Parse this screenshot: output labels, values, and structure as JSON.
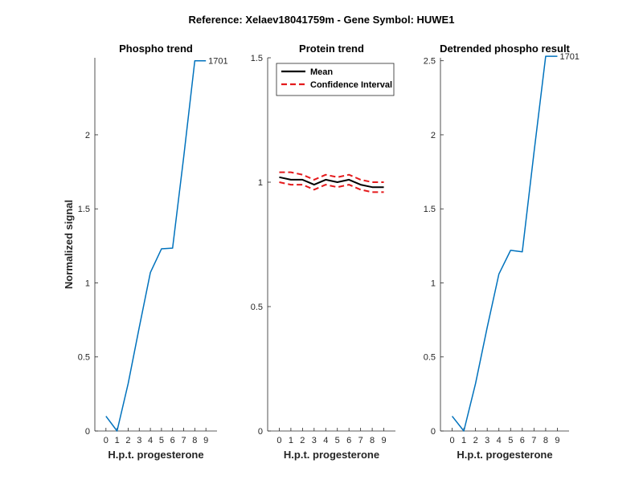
{
  "figure": {
    "title": "Reference:  Xelaev18041759m - Gene Symbol:  HUWE1"
  },
  "chart_data": [
    {
      "type": "line",
      "title": "Phospho trend",
      "xlabel": "H.p.t. progesterone",
      "ylabel": "Normalized signal",
      "xlim": [
        -1,
        10
      ],
      "ylim": [
        0,
        2.52
      ],
      "xticks": [
        0,
        1,
        2,
        3,
        4,
        5,
        6,
        7,
        8,
        9
      ],
      "yticks": [
        0,
        0.5,
        1,
        1.5,
        2
      ],
      "ytick_labels": [
        "0",
        "0.5",
        "1",
        "1.5",
        "2"
      ],
      "series": [
        {
          "color": "#0072BD",
          "x": [
            0,
            1,
            2,
            3,
            4,
            5,
            6,
            7,
            8,
            9
          ],
          "y": [
            0.1,
            0.0,
            0.32,
            0.7,
            1.07,
            1.23,
            1.235,
            1.85,
            2.5,
            2.5
          ]
        }
      ],
      "annotations": [
        {
          "text": "1701",
          "x": 9,
          "y": 2.5
        }
      ]
    },
    {
      "type": "line",
      "title": "Protein trend",
      "xlabel": "H.p.t. progesterone",
      "ylabel": "",
      "xlim": [
        -1,
        10
      ],
      "ylim": [
        0,
        1.5
      ],
      "xticks": [
        0,
        1,
        2,
        3,
        4,
        5,
        6,
        7,
        8,
        9
      ],
      "yticks": [
        0,
        0.5,
        1,
        1.5
      ],
      "ytick_labels": [
        "0",
        "0.5",
        "1",
        "1.5"
      ],
      "legend": "top-left",
      "series": [
        {
          "name": "Mean",
          "color": "#000000",
          "style": "solid",
          "x": [
            0,
            1,
            2,
            3,
            4,
            5,
            6,
            7,
            8,
            9
          ],
          "y": [
            1.02,
            1.01,
            1.01,
            0.99,
            1.01,
            1.0,
            1.01,
            0.99,
            0.98,
            0.98
          ]
        },
        {
          "name": "Confidence Interval",
          "color": "#E41A1C",
          "style": "dashed",
          "x": [
            0,
            1,
            2,
            3,
            4,
            5,
            6,
            7,
            8,
            9
          ],
          "y": [
            1.04,
            1.04,
            1.03,
            1.01,
            1.03,
            1.02,
            1.03,
            1.01,
            1.0,
            1.0
          ]
        },
        {
          "name": "",
          "color": "#E41A1C",
          "style": "dashed",
          "x": [
            0,
            1,
            2,
            3,
            4,
            5,
            6,
            7,
            8,
            9
          ],
          "y": [
            1.0,
            0.99,
            0.99,
            0.97,
            0.99,
            0.98,
            0.99,
            0.97,
            0.96,
            0.96
          ]
        }
      ]
    },
    {
      "type": "line",
      "title": "Detrended phospho result",
      "xlabel": "H.p.t. progesterone",
      "ylabel": "",
      "xlim": [
        -1,
        10
      ],
      "ylim": [
        0,
        2.52
      ],
      "xticks": [
        0,
        1,
        2,
        3,
        4,
        5,
        6,
        7,
        8,
        9
      ],
      "yticks": [
        0,
        0.5,
        1,
        1.5,
        2,
        2.5
      ],
      "ytick_labels": [
        "0",
        "0.5",
        "1",
        "1.5",
        "2",
        "2.5"
      ],
      "series": [
        {
          "color": "#0072BD",
          "x": [
            0,
            1,
            2,
            3,
            4,
            5,
            6,
            7,
            8,
            9
          ],
          "y": [
            0.1,
            0.0,
            0.32,
            0.7,
            1.06,
            1.22,
            1.21,
            1.88,
            2.53,
            2.53
          ]
        }
      ],
      "annotations": [
        {
          "text": "1701",
          "x": 9,
          "y": 2.53
        }
      ]
    }
  ]
}
